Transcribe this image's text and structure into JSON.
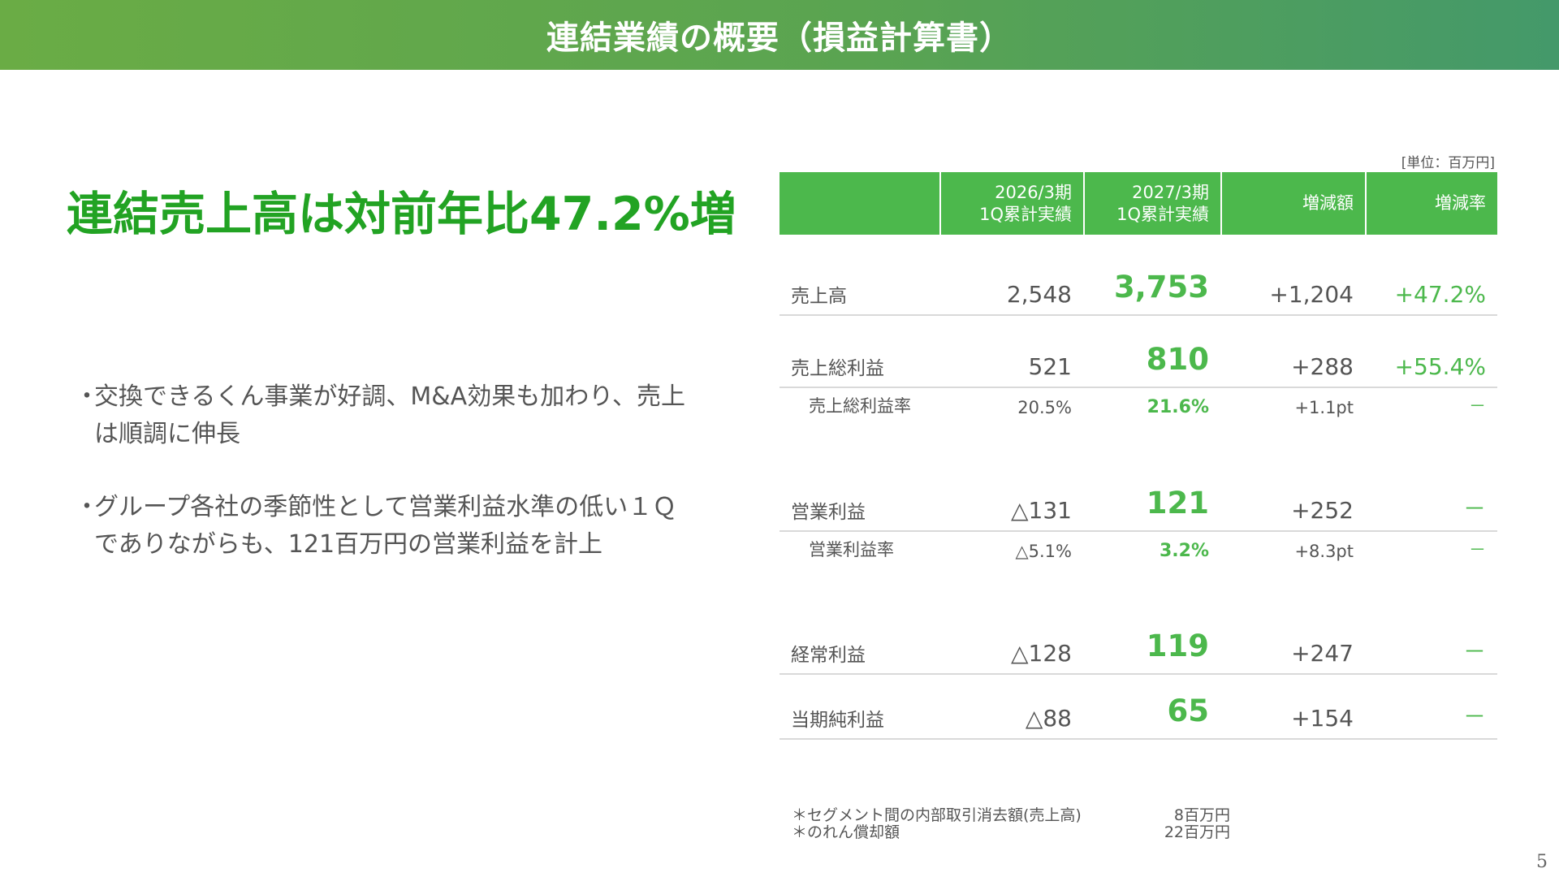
{
  "header": {
    "title": "連結業績の概要（損益計算書）"
  },
  "headline": "連結売上高は対前年比47.2%増",
  "bullets": [
    {
      "marker": "・",
      "lines": [
        "交換できるくん事業が好調、M&A効果も加わり、売上",
        "は順調に伸長"
      ]
    },
    {
      "marker": "・",
      "lines": [
        "グループ各社の季節性として営業利益水準の低い１Ｑ",
        "でありながらも、121百万円の営業利益を計上"
      ]
    }
  ],
  "table": {
    "unit": "[単位：百万円]",
    "headers": {
      "label": "",
      "prev_line1": "2026/3期",
      "prev_line2": "1Q累計実績",
      "cur_line1": "2027/3期",
      "cur_line2": "1Q累計実績",
      "diff": "増減額",
      "rate": "増減率"
    },
    "rows": [
      {
        "label": "売上高",
        "prev": "2,548",
        "cur": "3,753",
        "diff": "+1,204",
        "rate": "+47.2%"
      },
      {
        "label": "売上総利益",
        "prev": "521",
        "cur": "810",
        "diff": "+288",
        "rate": "+55.4%"
      },
      {
        "label": "売上総利益率",
        "prev": "20.5%",
        "cur": "21.6%",
        "diff": "+1.1pt",
        "rate": "－"
      },
      {
        "label": "営業利益",
        "prev": "△131",
        "cur": "121",
        "diff": "+252",
        "rate": "－"
      },
      {
        "label": "営業利益率",
        "prev": "△5.1%",
        "cur": "3.2%",
        "diff": "+8.3pt",
        "rate": "－"
      },
      {
        "label": "経常利益",
        "prev": "△128",
        "cur": "119",
        "diff": "+247",
        "rate": "－"
      },
      {
        "label": "当期純利益",
        "prev": "△88",
        "cur": "65",
        "diff": "+154",
        "rate": "－"
      }
    ]
  },
  "footnotes": [
    {
      "text": "＊セグメント間の内部取引消去額(売上高)",
      "value": "8百万円"
    },
    {
      "text": "＊のれん償却額",
      "value": "22百万円"
    }
  ],
  "page_number": "5"
}
